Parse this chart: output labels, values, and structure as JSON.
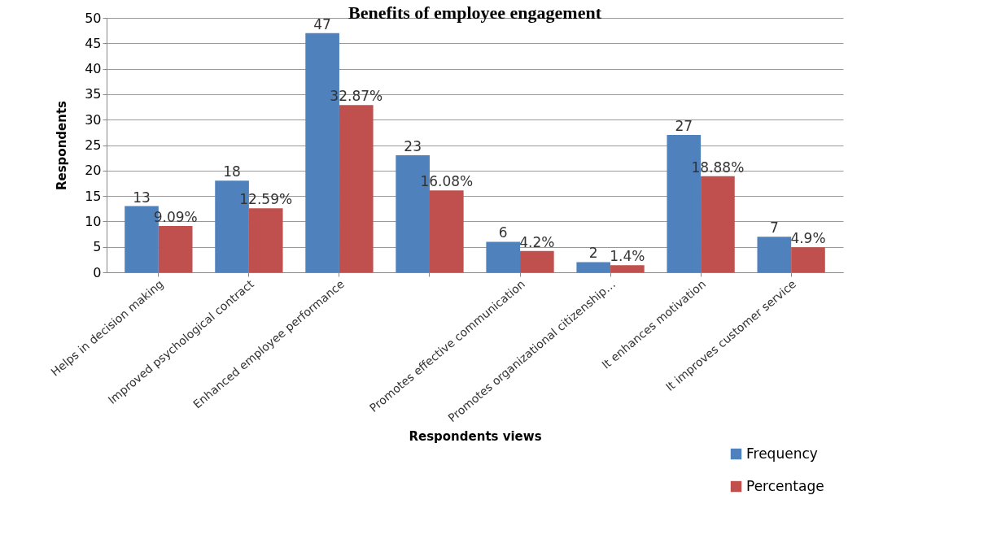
{
  "chart_data": {
    "type": "bar",
    "title": "Benefits of employee engagement",
    "xlabel": "Respondents views",
    "ylabel": "Respondents",
    "categories": [
      "Helps in decision making",
      "Improved psychological contract",
      "Enhanced employee performance",
      null,
      "Promotes effective communication",
      "Promotes organizational citizenship…",
      "It enhances motivation",
      "It improves customer service"
    ],
    "series": [
      {
        "name": "Frequency",
        "color": "#4f81bd",
        "values": [
          13,
          18,
          47,
          23,
          6,
          2,
          27,
          7
        ],
        "value_labels": [
          "13",
          "18",
          "47",
          "23",
          "6",
          "2",
          "27",
          "7"
        ]
      },
      {
        "name": "Percentage",
        "color": "#c0504d",
        "values": [
          9.09,
          12.59,
          32.87,
          16.08,
          4.2,
          1.4,
          18.88,
          4.9
        ],
        "value_labels": [
          "9.09%",
          "12.59%",
          "32.87%",
          "16.08%",
          "4.2%",
          "1.4%",
          "18.88%",
          "4.9%"
        ]
      }
    ],
    "ylim": [
      0,
      50
    ],
    "yticks": [
      0,
      5,
      10,
      15,
      20,
      25,
      30,
      35,
      40,
      45,
      50
    ],
    "grid": "y",
    "legend": "bottom right"
  }
}
